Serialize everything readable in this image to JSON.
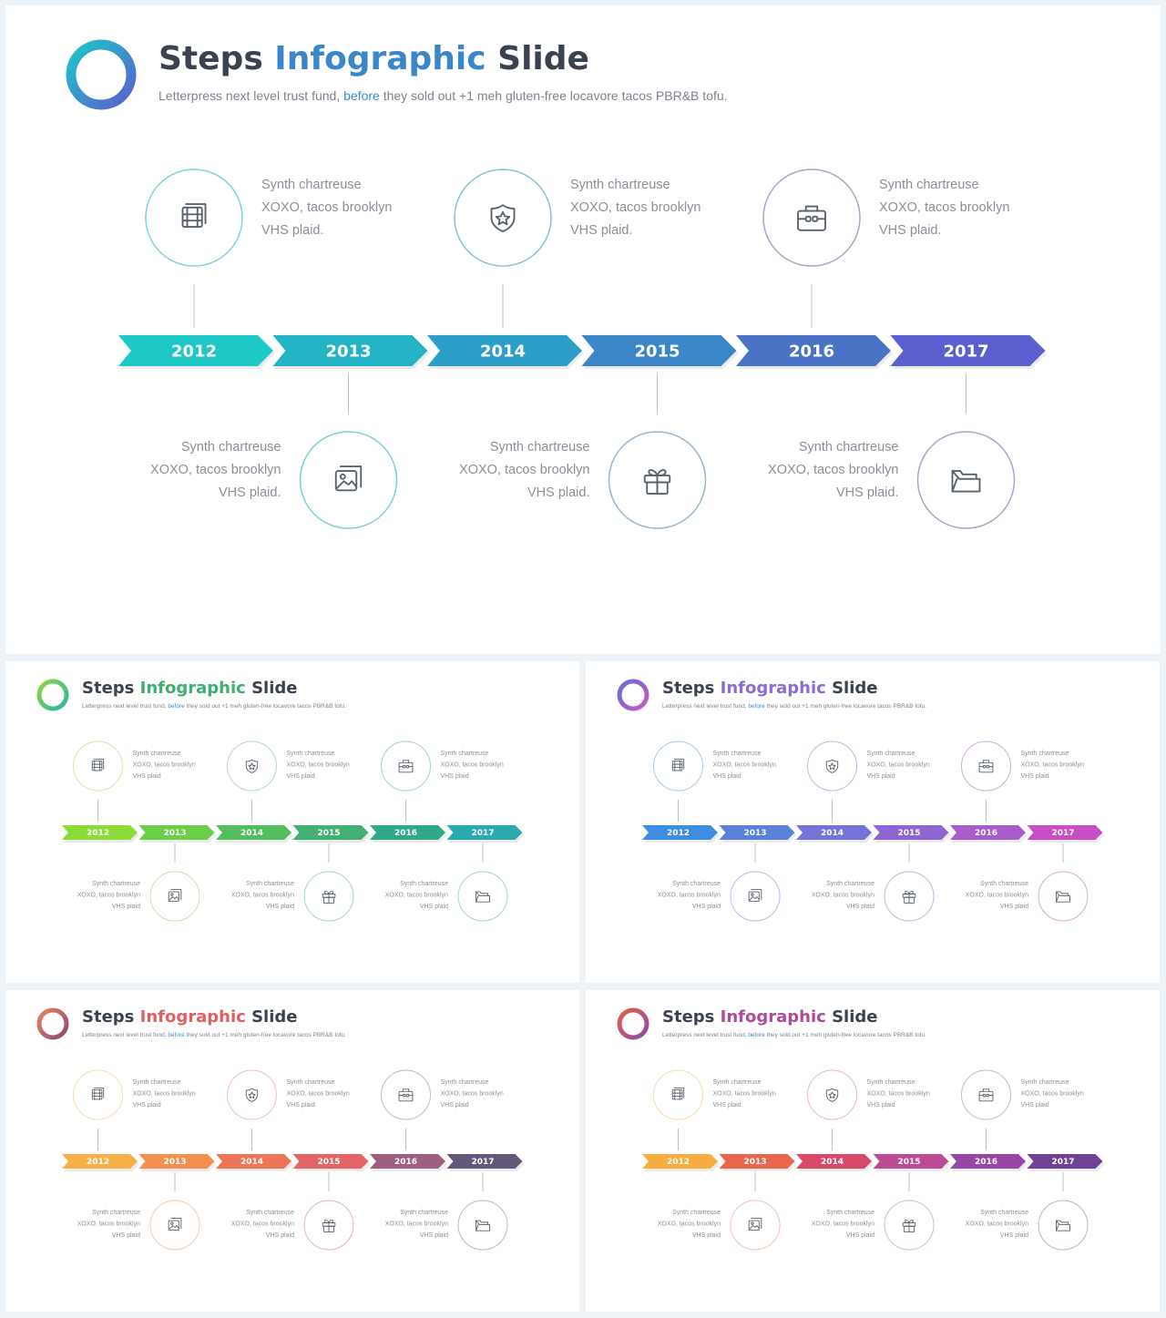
{
  "slide": {
    "title_part1": "Steps",
    "title_part2": "Infographic",
    "title_part3": "Slide",
    "subtitle_part1": "Letterpress next level trust fund,",
    "subtitle_highlight": "before",
    "subtitle_part2": "they sold out +1 meh gluten-free locavore tacos PBR&B tofu."
  },
  "steps": [
    {
      "year": "2012",
      "position": "top",
      "icon": "film-icon",
      "lines": [
        "Synth chartreuse",
        "XOXO, tacos brooklyn",
        "VHS plaid."
      ]
    },
    {
      "year": "2013",
      "position": "bottom",
      "icon": "image-icon",
      "lines": [
        "Synth chartreuse",
        "XOXO, tacos brooklyn",
        "VHS plaid."
      ]
    },
    {
      "year": "2014",
      "position": "top",
      "icon": "shield-star-icon",
      "lines": [
        "Synth chartreuse",
        "XOXO, tacos brooklyn",
        "VHS plaid."
      ]
    },
    {
      "year": "2015",
      "position": "bottom",
      "icon": "gift-icon",
      "lines": [
        "Synth chartreuse",
        "XOXO, tacos brooklyn",
        "VHS plaid."
      ]
    },
    {
      "year": "2016",
      "position": "top",
      "icon": "briefcase-icon",
      "lines": [
        "Synth chartreuse",
        "XOXO, tacos brooklyn",
        "VHS plaid."
      ]
    },
    {
      "year": "2017",
      "position": "bottom",
      "icon": "folder-icon",
      "lines": [
        "Synth chartreuse",
        "XOXO, tacos brooklyn",
        "VHS plaid."
      ]
    }
  ],
  "thumbnail_lines": [
    "Synth chartreuse",
    "XOXO, tacos brooklyn",
    "VHS plaid"
  ],
  "themes": [
    {
      "name": "blue-teal",
      "accent": "#3a86c8",
      "logo": [
        "#1ec6c8",
        "#5b5fd0"
      ],
      "arrows": [
        "#1ec8c6",
        "#22b4c4",
        "#2b9fc8",
        "#3a86c8",
        "#4a73c6",
        "#5b5fd0"
      ],
      "circles": [
        "#7dd3d8",
        "#7dcfd8",
        "#86c4d4",
        "#94b6cc",
        "#9eaac4",
        "#a8a4c8"
      ]
    },
    {
      "name": "green",
      "accent": "#3eaf6e",
      "logo": [
        "#8ad83c",
        "#2db3a8"
      ],
      "arrows": [
        "#8bdc36",
        "#6bcd48",
        "#52be5e",
        "#42b070",
        "#30a88a",
        "#2aa9b0"
      ],
      "circles": [
        "#d6e8a8",
        "#c4e3b0",
        "#b4dcbc",
        "#a8d6c6",
        "#a4d2d0",
        "#a6d0d6"
      ]
    },
    {
      "name": "purple",
      "accent": "#8b6bd6",
      "logo": [
        "#6a6ad6",
        "#c85ac8"
      ],
      "arrows": [
        "#3d8de0",
        "#5a80dc",
        "#7474d6",
        "#8d66d4",
        "#a85ccc",
        "#c84ec4"
      ],
      "circles": [
        "#a8c8ec",
        "#b0c0e8",
        "#bab8e4",
        "#c4b2e0",
        "#ceacd8",
        "#d8a8d4"
      ]
    },
    {
      "name": "warm",
      "accent": "#e06060",
      "logo": [
        "#e9825a",
        "#8a4a78"
      ],
      "arrows": [
        "#f6b048",
        "#f3904c",
        "#ed7456",
        "#e26466",
        "#9e5e80",
        "#63577a"
      ],
      "circles": [
        "#f5dcae",
        "#f2cdb0",
        "#eec0b4",
        "#e8b6b8",
        "#cdb4c4",
        "#bcb6c8"
      ]
    },
    {
      "name": "magenta",
      "accent": "#b24a9a",
      "logo": [
        "#e0604c",
        "#8a4aa8"
      ],
      "arrows": [
        "#f7ac40",
        "#e9654c",
        "#d94868",
        "#bd4a94",
        "#9846a6",
        "#704296"
      ],
      "circles": [
        "#f6dcae",
        "#f0c4b4",
        "#e8b8c4",
        "#deb6d0",
        "#cfb4d8",
        "#c0b0d6"
      ]
    }
  ]
}
